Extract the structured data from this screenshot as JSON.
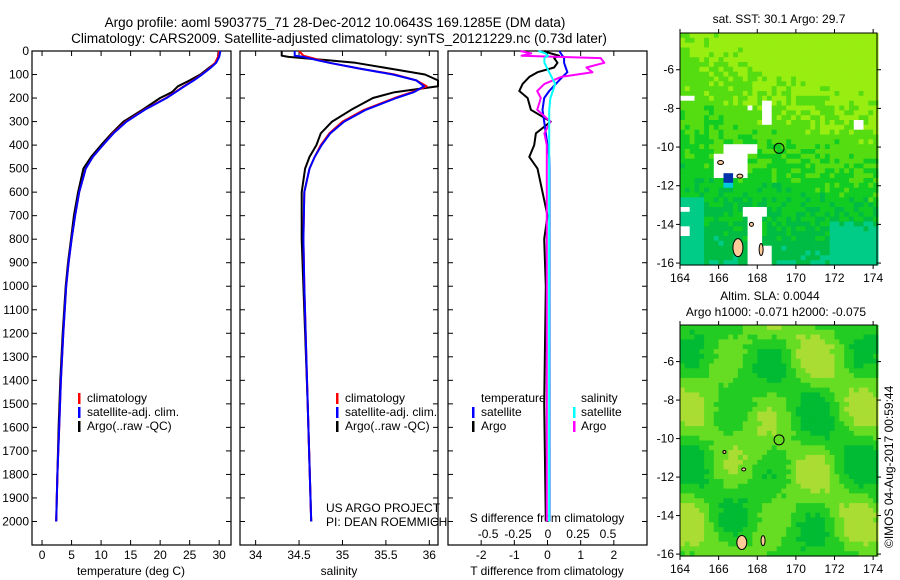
{
  "header": {
    "title_line1": "Argo profile: aoml 5903775_71 28-Dec-2012 10.0643S 169.1285E (DM data)",
    "title_line2": "Climatology: CARS2009. Satellite-adjusted climatology: synTS_20121229.nc (0.73d later)"
  },
  "credits": {
    "project": "US ARGO PROJECT",
    "pi": "PI: DEAN ROEMMICH",
    "watermark": "©IMOS 04-Aug-2017 00:59:44"
  },
  "colors": {
    "climatology": "#ff0000",
    "satellite": "#0000ff",
    "argo": "#000000",
    "sal_satellite": "#00ffff",
    "sal_argo": "#ff00ff",
    "land": "#ffcc99"
  },
  "chart_data": [
    {
      "type": "line",
      "id": "temperature",
      "xlabel": "temperature (deg C)",
      "ylabel": "",
      "xlim": [
        -1.7,
        32
      ],
      "ylim": [
        2100,
        0
      ],
      "xticks": [
        "0",
        "5",
        "10",
        "15",
        "20",
        "25",
        "30"
      ],
      "yticks": [
        "0",
        "100",
        "200",
        "300",
        "400",
        "500",
        "600",
        "700",
        "800",
        "900",
        "1000",
        "1100",
        "1200",
        "1300",
        "1400",
        "1500",
        "1600",
        "1700",
        "1800",
        "1900",
        "2000"
      ],
      "legend": [
        "climatology",
        "satellite-adj. clim.",
        "Argo(..raw -QC)"
      ],
      "legend_position": "bottom-left",
      "depth": [
        0,
        25,
        50,
        75,
        100,
        125,
        150,
        175,
        200,
        250,
        300,
        350,
        400,
        450,
        500,
        600,
        700,
        800,
        900,
        1000,
        1200,
        1400,
        1600,
        1800,
        2000
      ],
      "series": [
        {
          "name": "climatology",
          "values": [
            30,
            29.8,
            29.3,
            28.3,
            27,
            25.6,
            24,
            22.5,
            21,
            17.3,
            14.2,
            12,
            10.3,
            8.6,
            7.4,
            6.3,
            5.6,
            5.0,
            4.5,
            4.1,
            3.6,
            3.2,
            2.9,
            2.6,
            2.4
          ]
        },
        {
          "name": "satellite-adj. clim.",
          "values": [
            30.2,
            30,
            29.5,
            28.4,
            27.1,
            25.7,
            24.1,
            22.6,
            21.1,
            17.4,
            14.3,
            12.1,
            10.3,
            8.6,
            7.4,
            6.3,
            5.6,
            5.0,
            4.5,
            4.1,
            3.6,
            3.2,
            2.9,
            2.6,
            2.4
          ]
        },
        {
          "name": "Argo(..raw -QC)",
          "values": [
            29.9,
            29.8,
            29.4,
            28.1,
            26.8,
            25,
            23,
            22,
            20,
            17,
            13.8,
            11.8,
            10,
            8.3,
            7.0,
            6.1,
            5.4,
            4.9,
            4.4,
            4.0,
            3.5,
            3.1,
            2.8,
            2.6,
            2.4
          ]
        }
      ]
    },
    {
      "type": "line",
      "id": "salinity",
      "xlabel": "salinity",
      "xlim": [
        33.82,
        36.1
      ],
      "ylim": [
        2100,
        0
      ],
      "xticks": [
        "34",
        "34.5",
        "35",
        "35.5",
        "36"
      ],
      "legend": [
        "climatology",
        "satellite-adj. clim.",
        "Argo(..raw -QC)"
      ],
      "legend_position": "bottom-left",
      "depth": [
        0,
        20,
        25,
        40,
        50,
        75,
        100,
        125,
        150,
        175,
        200,
        250,
        300,
        350,
        400,
        450,
        500,
        600,
        800,
        1000,
        1500,
        2000
      ],
      "series": [
        {
          "name": "climatology",
          "values": [
            34.5,
            34.55,
            34.6,
            34.75,
            34.85,
            35.2,
            35.6,
            35.85,
            35.97,
            35.8,
            35.6,
            35.25,
            35.0,
            34.85,
            34.75,
            34.68,
            34.62,
            34.56,
            34.55,
            34.56,
            34.6,
            34.64
          ]
        },
        {
          "name": "satellite-adj. clim.",
          "values": [
            34.45,
            34.45,
            34.55,
            34.72,
            34.85,
            35.2,
            35.58,
            35.85,
            35.94,
            35.82,
            35.62,
            35.27,
            35.02,
            34.86,
            34.76,
            34.68,
            34.62,
            34.56,
            34.55,
            34.56,
            34.6,
            34.64
          ]
        },
        {
          "name": "Argo(..raw -QC)",
          "values": [
            34.3,
            34.3,
            34.38,
            34.85,
            35.15,
            35.55,
            35.95,
            36.1,
            36.1,
            35.6,
            35.35,
            35.1,
            34.88,
            34.75,
            34.7,
            34.62,
            34.57,
            34.53,
            34.53,
            34.55,
            34.6,
            34.64
          ]
        }
      ]
    },
    {
      "type": "line",
      "id": "difference",
      "xlabel": "T difference from climatology",
      "x2label": "S difference from climatology",
      "xlim": [
        -3,
        3
      ],
      "x2lim": [
        -0.83,
        0.83
      ],
      "ylim": [
        2100,
        0
      ],
      "xticks": [
        "-2",
        "-1",
        "0",
        "1",
        "2"
      ],
      "x2ticks": [
        "-0.5",
        "-0.25",
        "0",
        "0.25",
        "0.5"
      ],
      "legend_temperature": {
        "title": "temperature",
        "items": [
          "satellite",
          "Argo"
        ]
      },
      "legend_salinity": {
        "title": "salinity",
        "items": [
          "satellite",
          "Argo"
        ]
      },
      "depth": [
        0,
        10,
        20,
        30,
        50,
        70,
        90,
        110,
        140,
        170,
        200,
        250,
        300,
        350,
        400,
        450,
        500,
        600,
        700,
        800,
        1000,
        1500,
        2000
      ],
      "series": [
        {
          "name": "temperature satellite",
          "axis": "T",
          "values": [
            0.36,
            0.4,
            0.45,
            0.5,
            0.5,
            0.55,
            0.6,
            0.45,
            0.25,
            0.05,
            -0.1,
            -0.15,
            -0.1,
            -0.05,
            0,
            0.05,
            0.06,
            0.06,
            0.06,
            0.06,
            0.06,
            0.06,
            0.06
          ]
        },
        {
          "name": "temperature Argo",
          "axis": "T",
          "values": [
            -0.1,
            0.1,
            0.35,
            0.2,
            0.3,
            0.2,
            -0.3,
            -0.55,
            -0.75,
            -0.85,
            -0.6,
            -0.5,
            0.1,
            -0.35,
            -0.4,
            -0.55,
            -0.3,
            -0.15,
            0,
            -0.1,
            -0.05,
            -0.1,
            -0.05
          ]
        },
        {
          "name": "salinity satellite",
          "axis": "S",
          "values": [
            -0.08,
            -0.02,
            0,
            -0.03,
            -0.03,
            -0.01,
            0.01,
            0.03,
            0.06,
            0.04,
            0.02,
            0.01,
            0.01,
            0.01,
            0.01,
            0.01,
            0.01,
            0.01,
            0.01,
            0.01,
            0.01,
            0.01,
            0.01
          ]
        },
        {
          "name": "salinity Argo",
          "axis": "S",
          "values": [
            -0.23,
            -0.14,
            -0.22,
            0.44,
            0.47,
            0.32,
            0.37,
            0.11,
            -0.03,
            -0.09,
            -0.06,
            -0.09,
            0.02,
            -0.03,
            -0.01,
            -0.01,
            -0.01,
            -0.01,
            -0.01,
            -0.01,
            -0.01,
            -0.01,
            -0.01
          ]
        }
      ],
      "annotation": [
        "US ARGO PROJECT",
        "PI: DEAN ROEMMICH"
      ]
    },
    {
      "type": "heatmap",
      "id": "sst_map",
      "title": "sat. SST: 30.1 Argo: 29.7",
      "xlim": [
        164,
        174.2
      ],
      "ylim": [
        -16.1,
        -4.1
      ],
      "xticks": [
        "164",
        "166",
        "168",
        "170",
        "172",
        "174"
      ],
      "yticks": [
        "-6",
        "-8",
        "-10",
        "-12",
        "-14",
        "-16"
      ],
      "marker": {
        "lon": 169.1285,
        "lat": -10.0643
      }
    },
    {
      "type": "heatmap",
      "id": "sla_map",
      "title": "Altim. SLA: 0.0044",
      "subtitle": "Argo h1000: -0.071 h2000: -0.075",
      "xlim": [
        164,
        174.2
      ],
      "ylim": [
        -16.1,
        -4.1
      ],
      "xticks": [
        "164",
        "166",
        "168",
        "170",
        "172",
        "174"
      ],
      "yticks": [
        "-6",
        "-8",
        "-10",
        "-12",
        "-14",
        "-16"
      ],
      "marker": {
        "lon": 169.1285,
        "lat": -10.0643
      }
    }
  ]
}
